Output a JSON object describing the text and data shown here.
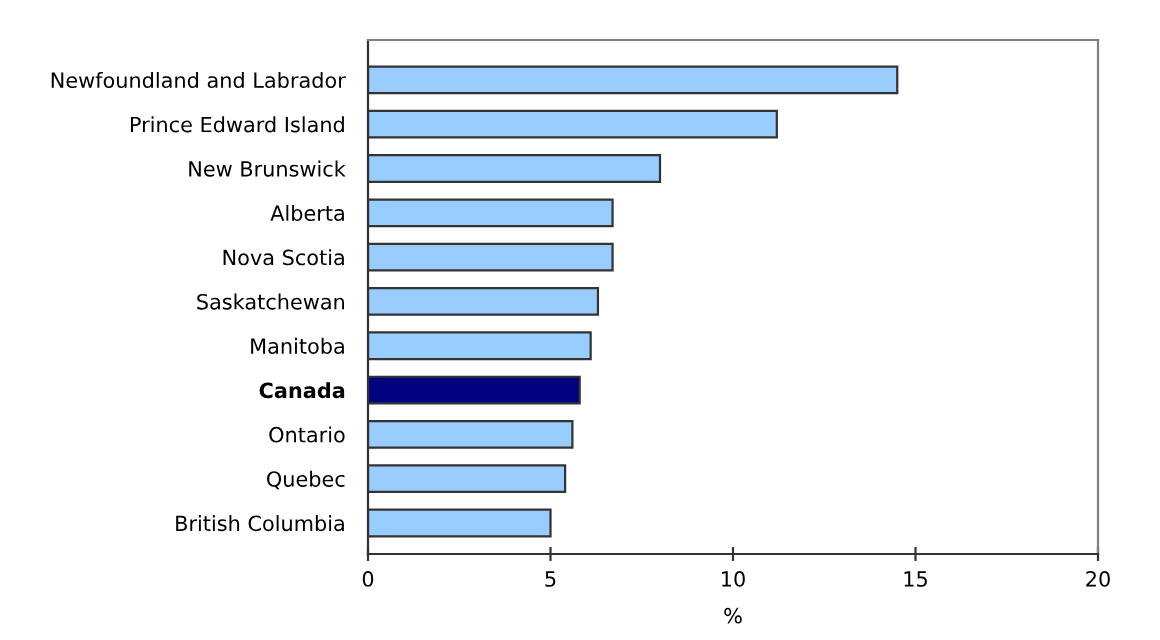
{
  "chart_data": {
    "type": "bar",
    "orientation": "horizontal",
    "xlabel": "%",
    "categories": [
      "Newfoundland and Labrador",
      "Prince Edward Island",
      "New Brunswick",
      "Alberta",
      "Nova Scotia",
      "Saskatchewan",
      "Manitoba",
      "Canada",
      "Ontario",
      "Quebec",
      "British Columbia"
    ],
    "values": [
      14.5,
      11.2,
      8.0,
      6.7,
      6.7,
      6.3,
      6.1,
      5.8,
      5.6,
      5.4,
      5.0
    ],
    "colors": [
      "#99ccff",
      "#99ccff",
      "#99ccff",
      "#99ccff",
      "#99ccff",
      "#99ccff",
      "#99ccff",
      "#000080",
      "#99ccff",
      "#99ccff",
      "#99ccff"
    ],
    "xlim": [
      0,
      20
    ],
    "xticks": [
      0,
      5,
      10,
      15,
      20
    ],
    "grid": false,
    "legend": false
  }
}
